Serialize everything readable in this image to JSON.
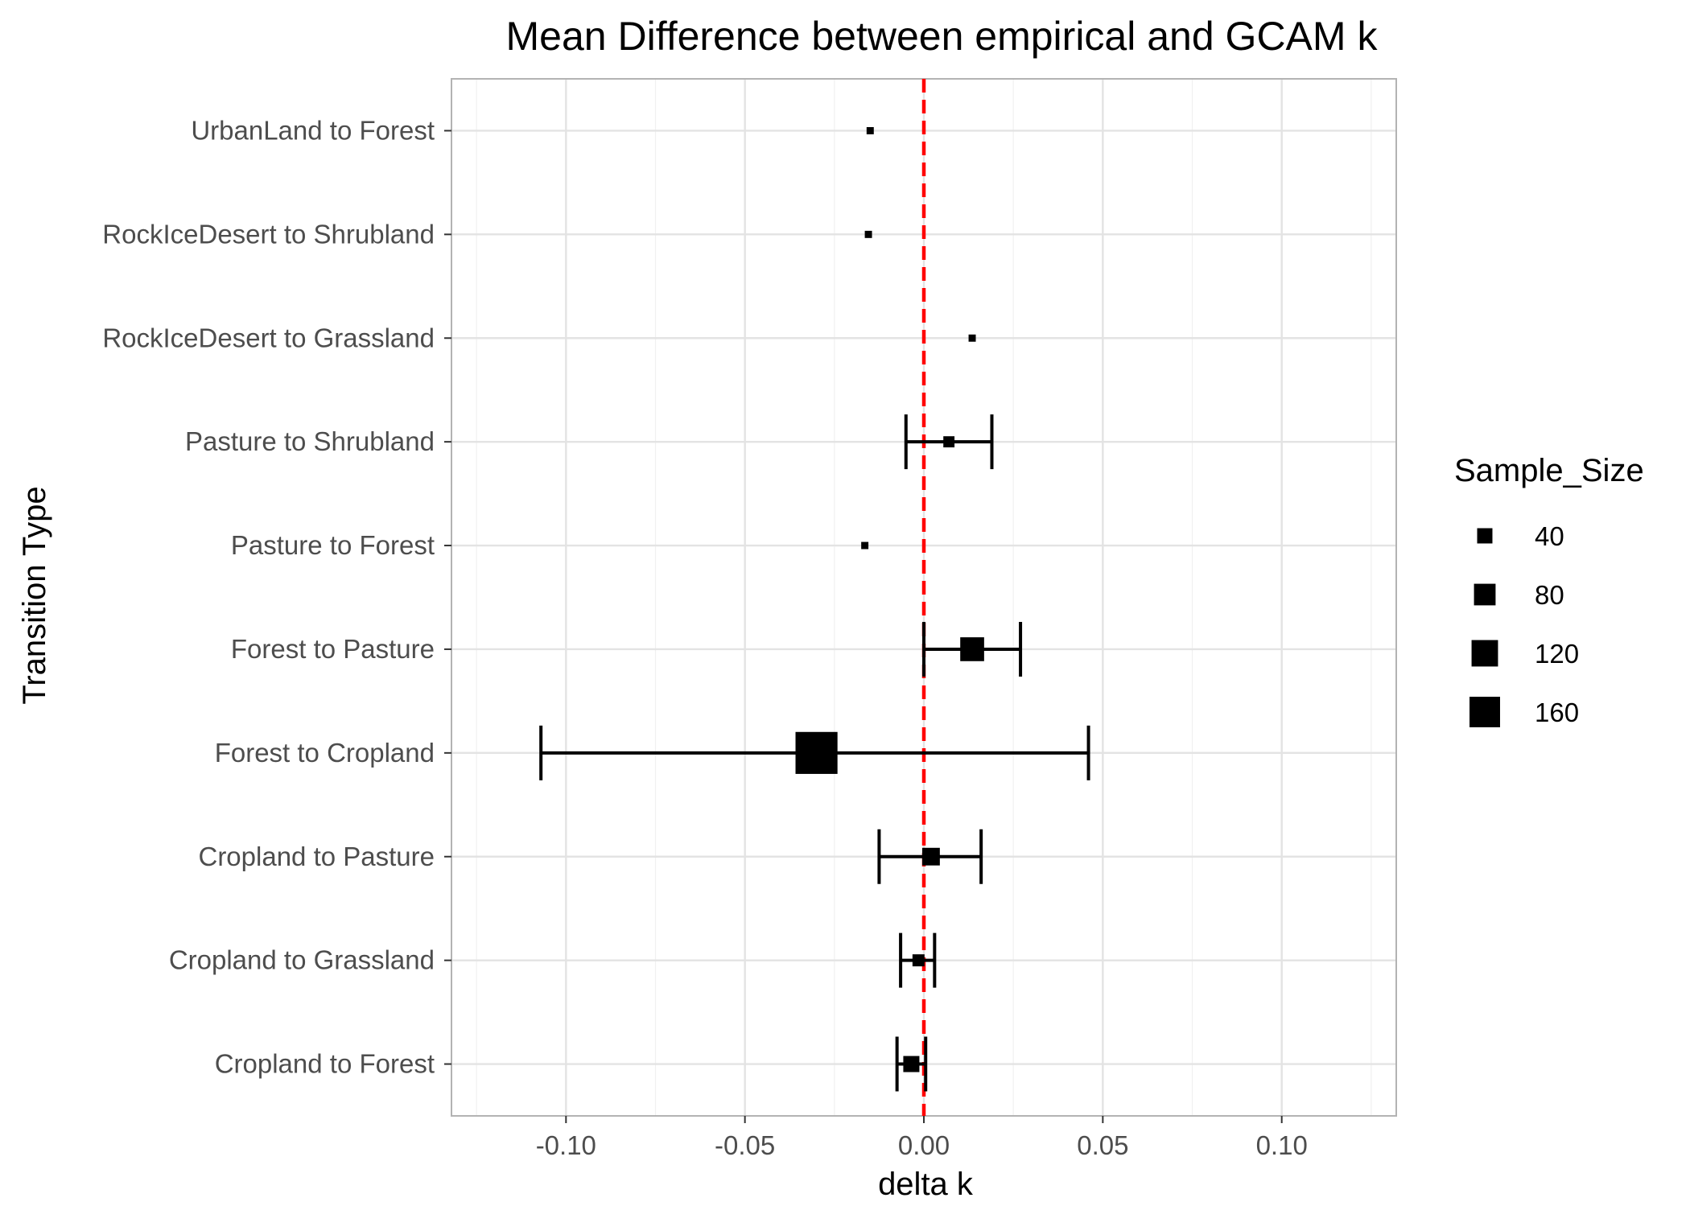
{
  "chart_data": {
    "type": "scatter",
    "title": "Mean Difference between empirical and GCAM k",
    "xlabel": "delta k",
    "ylabel": "Transition Type",
    "xlim": [
      -0.132,
      0.132
    ],
    "x_ticks": [
      -0.1,
      -0.05,
      0.0,
      0.05,
      0.1
    ],
    "x_tick_labels": [
      "-0.10",
      "-0.05",
      "0.00",
      "0.05",
      "0.10"
    ],
    "categories": [
      "UrbanLand to Forest",
      "RockIceDesert to Shrubland",
      "RockIceDesert to Grassland",
      "Pasture to Shrubland",
      "Pasture to Forest",
      "Forest to Pasture",
      "Forest to Cropland",
      "Cropland to Pasture",
      "Cropland to Grassland",
      "Cropland to Forest"
    ],
    "points": [
      {
        "category": "UrbanLand to Forest",
        "x": -0.015,
        "xmin": null,
        "xmax": null,
        "size": 5
      },
      {
        "category": "RockIceDesert to Shrubland",
        "x": -0.0155,
        "xmin": null,
        "xmax": null,
        "size": 5
      },
      {
        "category": "RockIceDesert to Grassland",
        "x": 0.0135,
        "xmin": null,
        "xmax": null,
        "size": 5
      },
      {
        "category": "Pasture to Shrubland",
        "x": 0.007,
        "xmin": -0.005,
        "xmax": 0.019,
        "size": 12
      },
      {
        "category": "Pasture to Forest",
        "x": -0.0165,
        "xmin": null,
        "xmax": null,
        "size": 5
      },
      {
        "category": "Forest to Pasture",
        "x": 0.0135,
        "xmin": 0.0,
        "xmax": 0.027,
        "size": 55
      },
      {
        "category": "Forest to Cropland",
        "x": -0.03,
        "xmin": -0.107,
        "xmax": 0.046,
        "size": 170
      },
      {
        "category": "Cropland to Pasture",
        "x": 0.002,
        "xmin": -0.0125,
        "xmax": 0.016,
        "size": 30
      },
      {
        "category": "Cropland to Grassland",
        "x": -0.0015,
        "xmin": -0.0065,
        "xmax": 0.003,
        "size": 14
      },
      {
        "category": "Cropland to Forest",
        "x": -0.0035,
        "xmin": -0.0075,
        "xmax": 0.0005,
        "size": 25
      }
    ],
    "reference_line": {
      "x": 0.0,
      "color": "#ff0000",
      "style": "dashed"
    },
    "grid": true,
    "legend": {
      "title": "Sample_Size",
      "position": "right",
      "entries": [
        {
          "label": "40",
          "size": 40
        },
        {
          "label": "80",
          "size": 80
        },
        {
          "label": "120",
          "size": 120
        },
        {
          "label": "160",
          "size": 160
        }
      ]
    },
    "point_color": "#000000",
    "point_shape": "square"
  }
}
